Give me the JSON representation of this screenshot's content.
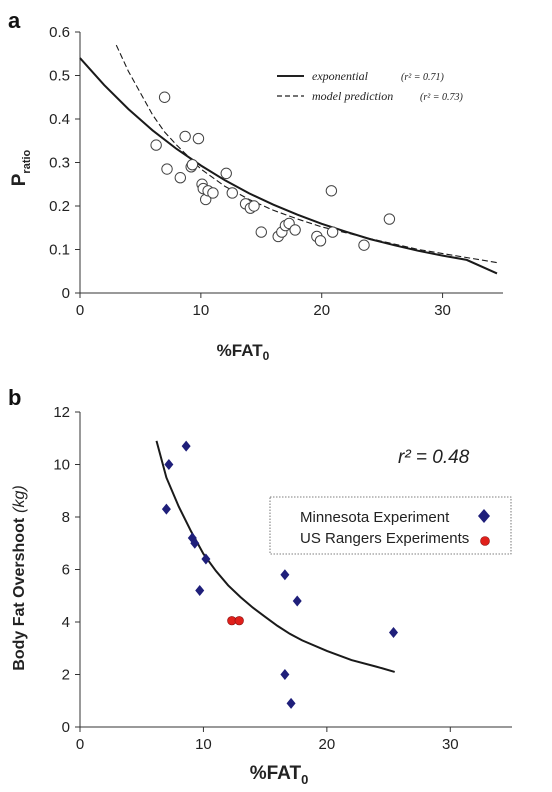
{
  "chart_data": [
    {
      "panel_label": "a",
      "type": "scatter",
      "xlabel_main": "%FAT",
      "xlabel_sub": "0",
      "ylabel_main": "P",
      "ylabel_sub": "ratio",
      "xlim": [
        0,
        35
      ],
      "ylim": [
        0,
        0.6
      ],
      "xticks": [
        0,
        10,
        20,
        30
      ],
      "yticks": [
        "0",
        "0.1",
        "0.2",
        "0.3",
        "0.4",
        "0.5",
        "0.6"
      ],
      "legend": [
        {
          "name": "exponential",
          "r2_label": "(r² = 0.71)",
          "style": "solid"
        },
        {
          "name": "model prediction",
          "r2_label": "(r² = 0.73)",
          "style": "dashed"
        }
      ],
      "points": [
        {
          "x": 6.3,
          "y": 0.34
        },
        {
          "x": 7.0,
          "y": 0.45
        },
        {
          "x": 7.2,
          "y": 0.285
        },
        {
          "x": 8.3,
          "y": 0.265
        },
        {
          "x": 8.7,
          "y": 0.36
        },
        {
          "x": 9.2,
          "y": 0.29
        },
        {
          "x": 9.3,
          "y": 0.295
        },
        {
          "x": 9.8,
          "y": 0.355
        },
        {
          "x": 10.1,
          "y": 0.25
        },
        {
          "x": 10.2,
          "y": 0.24
        },
        {
          "x": 10.4,
          "y": 0.215
        },
        {
          "x": 10.6,
          "y": 0.235
        },
        {
          "x": 11.0,
          "y": 0.23
        },
        {
          "x": 12.1,
          "y": 0.275
        },
        {
          "x": 12.6,
          "y": 0.23
        },
        {
          "x": 13.7,
          "y": 0.205
        },
        {
          "x": 14.1,
          "y": 0.195
        },
        {
          "x": 14.4,
          "y": 0.2
        },
        {
          "x": 15.0,
          "y": 0.14
        },
        {
          "x": 16.4,
          "y": 0.13
        },
        {
          "x": 16.7,
          "y": 0.14
        },
        {
          "x": 17.0,
          "y": 0.155
        },
        {
          "x": 17.3,
          "y": 0.16
        },
        {
          "x": 17.8,
          "y": 0.145
        },
        {
          "x": 19.6,
          "y": 0.13
        },
        {
          "x": 19.9,
          "y": 0.12
        },
        {
          "x": 20.8,
          "y": 0.235
        },
        {
          "x": 20.9,
          "y": 0.14
        },
        {
          "x": 23.5,
          "y": 0.11
        },
        {
          "x": 25.6,
          "y": 0.17
        }
      ],
      "curves": [
        {
          "name": "exponential",
          "style": "solid",
          "x": [
            0,
            2,
            4,
            6,
            8,
            10,
            12,
            14,
            16,
            18,
            20,
            22,
            24,
            26,
            28,
            30,
            32,
            34.5
          ],
          "y": [
            0.54,
            0.478,
            0.423,
            0.374,
            0.331,
            0.293,
            0.259,
            0.229,
            0.203,
            0.18,
            0.159,
            0.141,
            0.124,
            0.11,
            0.097,
            0.086,
            0.076,
            0.045
          ]
        },
        {
          "name": "model prediction",
          "style": "dashed",
          "x": [
            3,
            4,
            5,
            6,
            7,
            8,
            10,
            12,
            14,
            16,
            18,
            20,
            24,
            28,
            34.5
          ],
          "y": [
            0.57,
            0.51,
            0.46,
            0.41,
            0.37,
            0.34,
            0.285,
            0.245,
            0.215,
            0.19,
            0.17,
            0.152,
            0.125,
            0.1,
            0.07
          ]
        }
      ]
    },
    {
      "panel_label": "b",
      "type": "scatter",
      "xlabel_main": "%FAT",
      "xlabel_sub": "0",
      "ylabel_main": "Body Fat Overshoot",
      "ylabel_unit": "(kg)",
      "xlim": [
        0,
        35
      ],
      "ylim": [
        0,
        12
      ],
      "xticks": [
        0,
        10,
        20,
        30
      ],
      "yticks": [
        0,
        2,
        4,
        6,
        8,
        10,
        12
      ],
      "r2_text": "r² = 0.48",
      "legend": [
        {
          "name": "Minnesota Experiment",
          "marker": "diamond",
          "color": "#1f1f7a"
        },
        {
          "name": "US Rangers Experiments",
          "marker": "circle",
          "color": "#e0201b"
        }
      ],
      "series": [
        {
          "name": "Minnesota Experiment",
          "marker": "diamond",
          "color": "#1f1f7a",
          "points": [
            {
              "x": 7.0,
              "y": 8.3
            },
            {
              "x": 7.2,
              "y": 10.0
            },
            {
              "x": 8.6,
              "y": 10.7
            },
            {
              "x": 9.1,
              "y": 7.2
            },
            {
              "x": 9.3,
              "y": 7.0
            },
            {
              "x": 9.7,
              "y": 5.2
            },
            {
              "x": 10.2,
              "y": 6.4
            },
            {
              "x": 16.6,
              "y": 5.8
            },
            {
              "x": 16.6,
              "y": 2.0
            },
            {
              "x": 17.1,
              "y": 0.9
            },
            {
              "x": 17.6,
              "y": 4.8
            },
            {
              "x": 25.4,
              "y": 3.6
            }
          ]
        },
        {
          "name": "US Rangers Experiments",
          "marker": "circle",
          "color": "#e0201b",
          "points": [
            {
              "x": 12.3,
              "y": 4.05
            },
            {
              "x": 12.9,
              "y": 4.05
            }
          ]
        }
      ],
      "curves": [
        {
          "name": "fit",
          "style": "solid",
          "x": [
            6.2,
            7,
            8,
            9,
            10,
            11,
            12,
            13,
            14,
            15,
            16,
            17,
            18,
            20,
            22,
            24,
            25.5
          ],
          "y": [
            10.9,
            9.5,
            8.4,
            7.45,
            6.6,
            5.95,
            5.4,
            4.95,
            4.55,
            4.2,
            3.85,
            3.55,
            3.3,
            2.9,
            2.55,
            2.3,
            2.1
          ]
        }
      ]
    }
  ]
}
